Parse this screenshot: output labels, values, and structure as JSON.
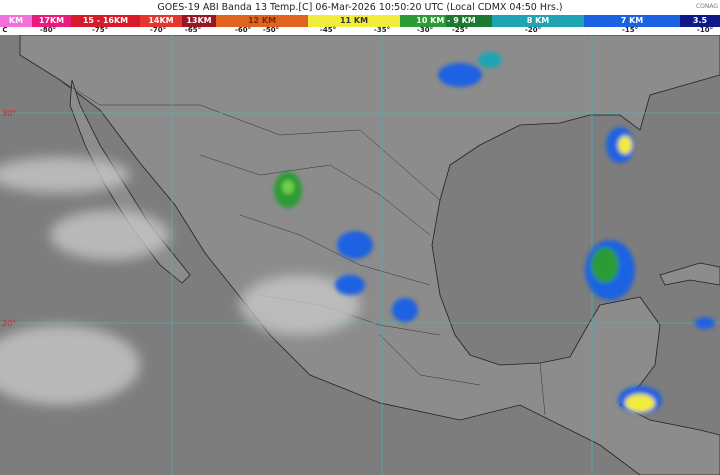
{
  "header": {
    "title": "GOES-19 ABI Banda 13 Temp.[C] 06-Mar-2026 10:50:20 UTC (Local CDMX  04:50 Hrs.)",
    "logo_text": "CONAG"
  },
  "legend": {
    "segments": [
      {
        "label": "KM",
        "color": "#f36fdc"
      },
      {
        "label": "17KM",
        "color": "#e8197f"
      },
      {
        "label": "15 - 16KM",
        "color": "#d8192a"
      },
      {
        "label": "14KM",
        "color": "#e6352c"
      },
      {
        "label": "13KM",
        "color": "#9a1624"
      },
      {
        "label": "12 KM",
        "color": "#e0641f"
      },
      {
        "label": "11 KM",
        "color": "#f2ec3a"
      },
      {
        "label": "10 KM - 9 KM",
        "color": "#2c9b35"
      },
      {
        "label": "8 KM",
        "color": "#1fa4b4"
      },
      {
        "label": "7 KM",
        "color": "#1a62e2"
      },
      {
        "label": "3.5",
        "color": "#0e1a8a"
      }
    ],
    "temps": [
      "C",
      "-80°",
      "-75°",
      "-70°",
      "-65°",
      "-60°",
      "-50°",
      "-45°",
      "-35°",
      "-30°",
      "-25°",
      "-20°",
      "-15°",
      "-10°"
    ]
  },
  "map": {
    "latitude_labels": [
      "30°",
      "20°"
    ],
    "ocean_color": "#7d7d7d",
    "land_color": "#8e8e8e",
    "gridline_color": "#4fb0b0"
  }
}
